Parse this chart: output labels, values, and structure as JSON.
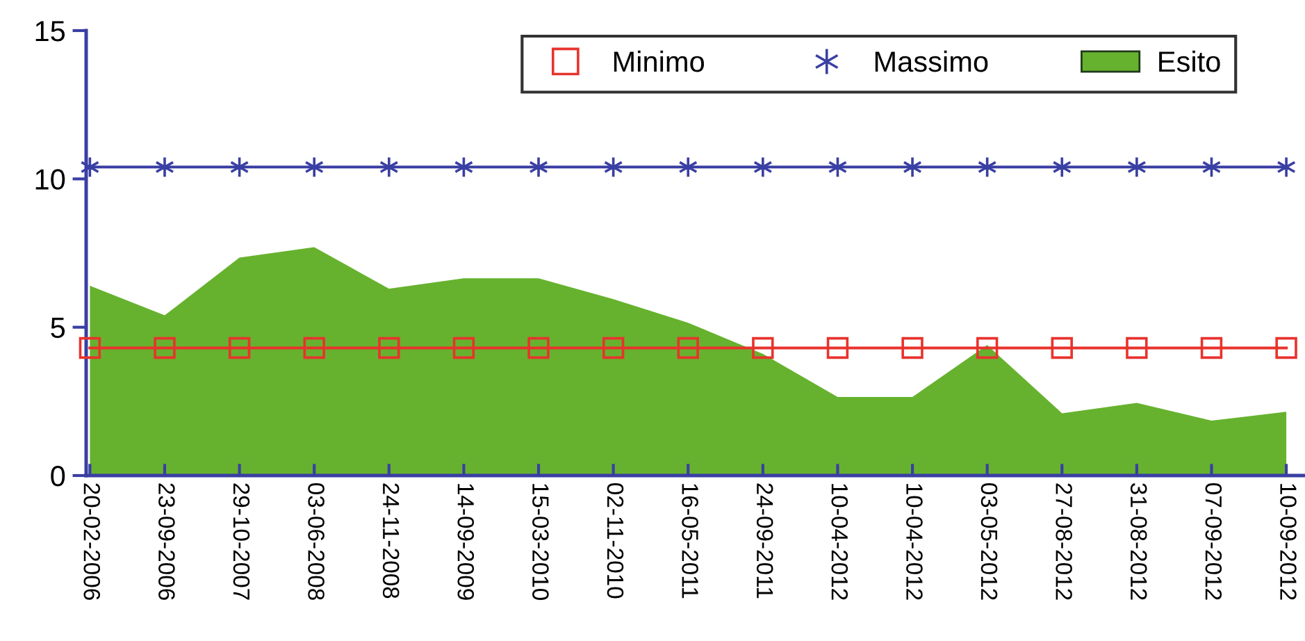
{
  "chart_data": {
    "type": "line",
    "categories": [
      "20-02-2006",
      "23-09-2006",
      "29-10-2007",
      "03-06-2008",
      "24-11-2008",
      "14-09-2009",
      "15-03-2010",
      "02-11-2010",
      "16-05-2011",
      "24-09-2011",
      "10-04-2012",
      "10-04-2012",
      "03-05-2012",
      "27-08-2012",
      "31-08-2012",
      "07-09-2012",
      "10-09-2012"
    ],
    "series": [
      {
        "name": "Minimo",
        "marker": "square",
        "color": "#e8332d",
        "values": [
          4.3,
          4.3,
          4.3,
          4.3,
          4.3,
          4.3,
          4.3,
          4.3,
          4.3,
          4.3,
          4.3,
          4.3,
          4.3,
          4.3,
          4.3,
          4.3,
          4.3
        ]
      },
      {
        "name": "Massimo",
        "marker": "cross",
        "color": "#3a3fa3",
        "values": [
          10.4,
          10.4,
          10.4,
          10.4,
          10.4,
          10.4,
          10.4,
          10.4,
          10.4,
          10.4,
          10.4,
          10.4,
          10.4,
          10.4,
          10.4,
          10.4,
          10.4
        ]
      },
      {
        "name": "Esito",
        "type": "area",
        "color": "#66b22e",
        "values": [
          6.4,
          5.4,
          7.35,
          7.7,
          6.3,
          6.65,
          6.65,
          5.95,
          5.15,
          4.1,
          2.65,
          2.65,
          4.4,
          2.1,
          2.45,
          1.85,
          2.15
        ]
      }
    ],
    "ylim": [
      0,
      15
    ],
    "yticks": [
      0,
      5,
      10,
      15
    ],
    "grid": false,
    "legend": "top right"
  }
}
